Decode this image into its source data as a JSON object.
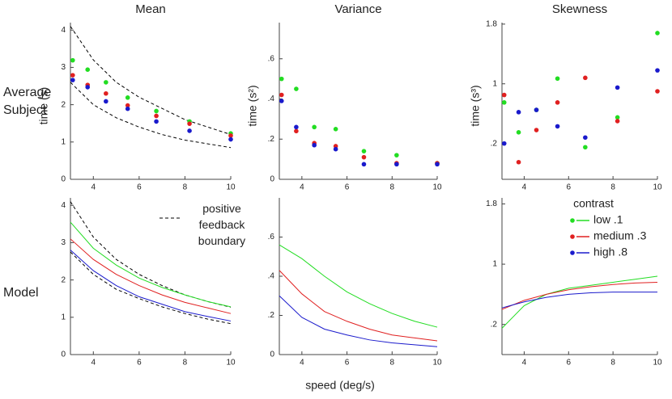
{
  "row_labels": [
    "Average Subject",
    "Model"
  ],
  "xlabel": "speed (deg/s)",
  "boundary_label": "positive feedback boundary",
  "legend_title": "contrast",
  "chart_data": [
    {
      "type": "scatter",
      "title": "Mean",
      "ylabel": "time (s)",
      "x": [
        3.1,
        3.75,
        4.55,
        5.5,
        6.75,
        8.2,
        10
      ],
      "series": [
        {
          "name": "low .1",
          "color": "#22dd22",
          "values": [
            3.19,
            2.94,
            2.6,
            2.19,
            1.83,
            1.55,
            1.23
          ]
        },
        {
          "name": "medium .3",
          "color": "#e02020",
          "values": [
            2.79,
            2.53,
            2.3,
            1.98,
            1.7,
            1.49,
            1.17
          ]
        },
        {
          "name": "high .8",
          "color": "#1a1acc",
          "values": [
            2.66,
            2.47,
            2.09,
            1.89,
            1.55,
            1.3,
            1.07
          ]
        }
      ],
      "lines": [
        {
          "color": "#000000",
          "dash": true,
          "x": [
            3,
            4,
            5,
            6,
            7,
            8,
            9,
            10
          ],
          "values": [
            4.1,
            3.2,
            2.6,
            2.2,
            1.9,
            1.6,
            1.4,
            1.2
          ]
        },
        {
          "color": "#000000",
          "dash": true,
          "x": [
            3,
            4,
            5,
            6,
            7,
            8,
            9,
            10
          ],
          "values": [
            2.6,
            2.0,
            1.65,
            1.4,
            1.2,
            1.05,
            0.95,
            0.85
          ]
        }
      ],
      "xlim": [
        3,
        10
      ],
      "xticks": [
        4,
        6,
        8,
        10
      ],
      "ylim": [
        0,
        4.2
      ],
      "yticks": [
        0,
        1,
        2,
        3,
        4
      ]
    },
    {
      "type": "scatter",
      "title": "Variance",
      "ylabel": "time (s²)",
      "x": [
        3.1,
        3.75,
        4.55,
        5.5,
        6.75,
        8.2,
        10
      ],
      "series": [
        {
          "name": "low .1",
          "color": "#22dd22",
          "values": [
            0.5,
            0.45,
            0.26,
            0.25,
            0.14,
            0.12,
            0.08
          ]
        },
        {
          "name": "medium .3",
          "color": "#e02020",
          "values": [
            0.42,
            0.24,
            0.18,
            0.165,
            0.11,
            0.08,
            0.08
          ]
        },
        {
          "name": "high .8",
          "color": "#1a1acc",
          "values": [
            0.39,
            0.26,
            0.17,
            0.15,
            0.075,
            0.075,
            0.075
          ]
        }
      ],
      "xlim": [
        3,
        10
      ],
      "xticks": [
        4,
        6,
        8,
        10
      ],
      "ylim": [
        0,
        0.78
      ],
      "yticks": [
        0,
        {
          "value": 0.2,
          "label": ".2"
        },
        {
          "value": 0.4,
          "label": ".4"
        },
        {
          "value": 0.6,
          "label": ".6"
        }
      ]
    },
    {
      "type": "scatter",
      "title": "Skewness",
      "ylabel": "time (s³)",
      "x": [
        3.1,
        3.75,
        4.55,
        5.5,
        6.75,
        8.2,
        10
      ],
      "series": [
        {
          "name": "low .1",
          "color": "#22dd22",
          "values": [
            0.75,
            0.35,
            0.65,
            1.07,
            0.15,
            0.55,
            1.68
          ]
        },
        {
          "name": "medium .3",
          "color": "#e02020",
          "values": [
            0.85,
            -0.05,
            0.38,
            0.75,
            1.08,
            0.5,
            0.9
          ]
        },
        {
          "name": "high .8",
          "color": "#1a1acc",
          "values": [
            0.2,
            0.62,
            0.65,
            0.43,
            0.28,
            0.95,
            1.18
          ]
        }
      ],
      "xlim": [
        3,
        10
      ],
      "xticks": [
        4,
        6,
        8,
        10
      ],
      "ylim": [
        -0.28,
        1.82
      ],
      "yticks": [
        {
          "value": 0.2,
          "label": ".2"
        },
        1,
        1.8
      ]
    },
    {
      "type": "line",
      "x": [
        3,
        4,
        5,
        6,
        7,
        8,
        9,
        10
      ],
      "series": [
        {
          "name": "low .1",
          "color": "#22dd22",
          "values": [
            3.55,
            2.85,
            2.4,
            2.05,
            1.8,
            1.6,
            1.42,
            1.28
          ]
        },
        {
          "name": "medium .3",
          "color": "#e02020",
          "values": [
            3.1,
            2.55,
            2.15,
            1.85,
            1.6,
            1.4,
            1.25,
            1.1
          ]
        },
        {
          "name": "high .8",
          "color": "#1a1acc",
          "values": [
            2.8,
            2.25,
            1.85,
            1.55,
            1.35,
            1.15,
            1.02,
            0.9
          ]
        }
      ],
      "lines": [
        {
          "color": "#000000",
          "dash": true,
          "x": [
            3,
            4,
            5,
            6,
            7,
            8,
            9,
            10
          ],
          "values": [
            4.1,
            3.15,
            2.55,
            2.15,
            1.85,
            1.6,
            1.42,
            1.27
          ]
        },
        {
          "color": "#000000",
          "dash": true,
          "x": [
            3,
            4,
            5,
            6,
            7,
            8,
            9,
            10
          ],
          "values": [
            2.75,
            2.15,
            1.75,
            1.5,
            1.28,
            1.1,
            0.95,
            0.83
          ]
        }
      ],
      "xlim": [
        3,
        10
      ],
      "xticks": [
        4,
        6,
        8,
        10
      ],
      "ylim": [
        0,
        4.2
      ],
      "yticks": [
        0,
        1,
        2,
        3,
        4
      ]
    },
    {
      "type": "line",
      "x": [
        3,
        4,
        5,
        6,
        7,
        8,
        9,
        10
      ],
      "series": [
        {
          "name": "low .1",
          "color": "#22dd22",
          "values": [
            0.56,
            0.49,
            0.4,
            0.32,
            0.26,
            0.21,
            0.17,
            0.14
          ]
        },
        {
          "name": "medium .3",
          "color": "#e02020",
          "values": [
            0.43,
            0.31,
            0.22,
            0.17,
            0.13,
            0.1,
            0.085,
            0.07
          ]
        },
        {
          "name": "high .8",
          "color": "#1a1acc",
          "values": [
            0.3,
            0.19,
            0.13,
            0.1,
            0.075,
            0.06,
            0.05,
            0.04
          ]
        }
      ],
      "xlim": [
        3,
        10
      ],
      "xticks": [
        4,
        6,
        8,
        10
      ],
      "ylim": [
        0,
        0.8
      ],
      "yticks": [
        0,
        {
          "value": 0.2,
          "label": ".2"
        },
        {
          "value": 0.4,
          "label": ".4"
        },
        {
          "value": 0.6,
          "label": ".6"
        }
      ]
    },
    {
      "type": "line",
      "x": [
        3,
        4,
        5,
        6,
        7,
        8,
        9,
        10
      ],
      "series": [
        {
          "name": "low .1",
          "color": "#22dd22",
          "values": [
            0.15,
            0.45,
            0.6,
            0.68,
            0.72,
            0.76,
            0.8,
            0.84
          ]
        },
        {
          "name": "medium .3",
          "color": "#e02020",
          "values": [
            0.4,
            0.52,
            0.6,
            0.66,
            0.7,
            0.73,
            0.75,
            0.76
          ]
        },
        {
          "name": "high .8",
          "color": "#1a1acc",
          "values": [
            0.42,
            0.5,
            0.56,
            0.6,
            0.62,
            0.63,
            0.63,
            0.63
          ]
        }
      ],
      "xlim": [
        3,
        10
      ],
      "xticks": [
        4,
        6,
        8,
        10
      ],
      "ylim": [
        -0.2,
        1.88
      ],
      "yticks": [
        {
          "value": 0.2,
          "label": ".2"
        },
        1,
        1.8
      ]
    }
  ]
}
